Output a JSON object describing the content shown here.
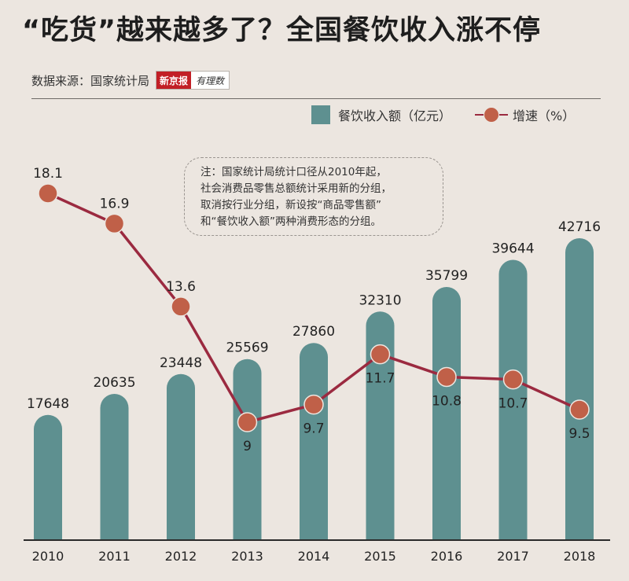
{
  "header": {
    "title": "“吃货”越来越多了？全国餐饮收入涨不停",
    "source_label": "数据来源：国家统计局",
    "logo_primary": "新京报",
    "logo_secondary": "有理数"
  },
  "note": {
    "lines": [
      "注：国家统计局统计口径从2010年起，",
      "社会消费品零售总额统计采用新的分组，",
      "取消按行业分组，新设按“商品零售额”",
      "和“餐饮收入额”两种消费形态的分组。"
    ]
  },
  "colors": {
    "background": "#ece6e0",
    "bar": "#5e9090",
    "line": "#9b2a40",
    "marker": "#c06048"
  },
  "chart_data": {
    "type": "bar",
    "categories": [
      "2010",
      "2011",
      "2012",
      "2013",
      "2014",
      "2015",
      "2016",
      "2017",
      "2018"
    ],
    "series": [
      {
        "name": "餐饮收入额（亿元）",
        "type": "bar",
        "axis": "left",
        "values": [
          17648,
          20635,
          23448,
          25569,
          27860,
          32310,
          35799,
          39644,
          42716
        ]
      },
      {
        "name": "增速（%）",
        "type": "line",
        "axis": "right",
        "values": [
          18.1,
          16.9,
          13.6,
          9,
          9.7,
          11.7,
          10.8,
          10.7,
          9.5
        ]
      }
    ],
    "title": "“吃货”越来越多了？全国餐饮收入涨不停",
    "legend": [
      "餐饮收入额（亿元）",
      "增速（%）"
    ],
    "legend_position": "top-right",
    "grid": false
  }
}
